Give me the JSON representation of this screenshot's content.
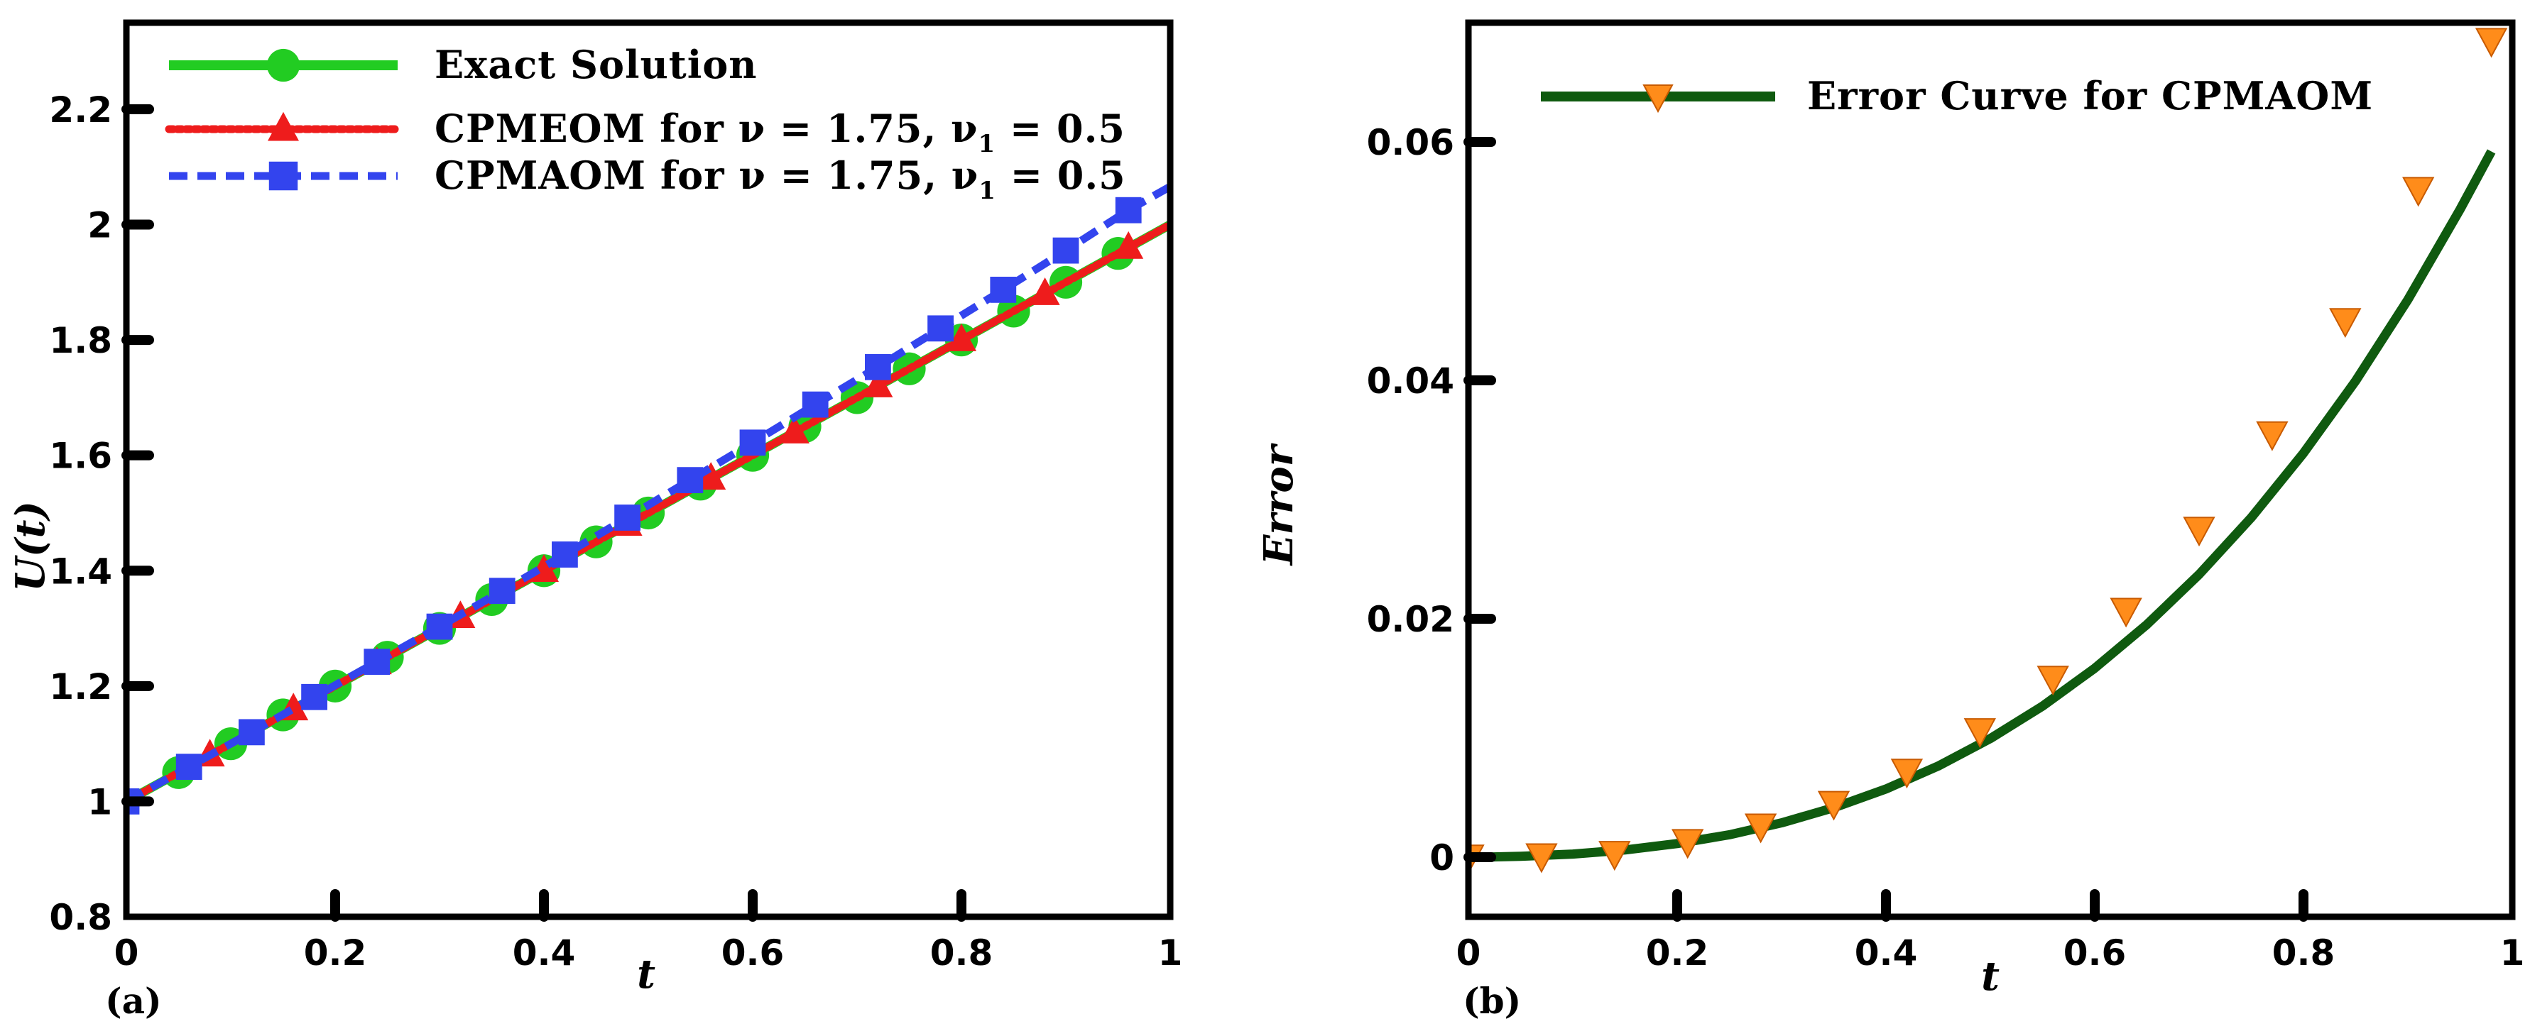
{
  "chart_data": [
    {
      "panel": "(a)",
      "type": "line",
      "xlabel": "t",
      "ylabel": "U(t)",
      "xlim": [
        0,
        1
      ],
      "ylim": [
        0.8,
        2.35
      ],
      "xticks": [
        0,
        0.2,
        0.4,
        0.6,
        0.8,
        1
      ],
      "xtick_labels": [
        "0",
        "0.2",
        "0.4",
        "0.6",
        "0.8",
        "1"
      ],
      "yticks": [
        0.8,
        1,
        1.2,
        1.4,
        1.6,
        1.8,
        2,
        2.2
      ],
      "ytick_labels": [
        "0.8",
        "1",
        "1.2",
        "1.4",
        "1.6",
        "1.8",
        "2",
        "2.2"
      ],
      "legend_position": "top-left",
      "series": [
        {
          "name": "Exact Solution",
          "legend_main": "Exact Solution",
          "legend_sub": "",
          "legend_tail": "",
          "color": "#22cc22",
          "line_style": "solid",
          "marker": "circle",
          "x": [
            0,
            0.05,
            0.1,
            0.15,
            0.2,
            0.25,
            0.3,
            0.35,
            0.4,
            0.45,
            0.5,
            0.55,
            0.6,
            0.65,
            0.7,
            0.75,
            0.8,
            0.85,
            0.9,
            0.95,
            1
          ],
          "y": [
            1,
            1.05,
            1.1,
            1.15,
            1.2,
            1.25,
            1.3,
            1.35,
            1.4,
            1.45,
            1.5,
            1.55,
            1.6,
            1.65,
            1.7,
            1.75,
            1.8,
            1.85,
            1.9,
            1.95,
            2
          ],
          "marker_x": [
            0.05,
            0.1,
            0.15,
            0.2,
            0.25,
            0.3,
            0.35,
            0.4,
            0.45,
            0.5,
            0.55,
            0.6,
            0.65,
            0.7,
            0.75,
            0.8,
            0.85,
            0.9,
            0.95
          ],
          "marker_y": [
            1.05,
            1.1,
            1.15,
            1.2,
            1.25,
            1.3,
            1.35,
            1.4,
            1.45,
            1.5,
            1.55,
            1.6,
            1.65,
            1.7,
            1.75,
            1.8,
            1.85,
            1.9,
            1.95
          ]
        },
        {
          "name": "CPMEOM for ν = 1.75, ν1 = 0.5",
          "legend_main": "CPMEOM for ν = 1.75, ν",
          "legend_sub": "1",
          "legend_tail": " = 0.5",
          "color": "#ee1c1c",
          "line_style": "dotted",
          "marker": "triangle",
          "x": [
            0,
            0.08,
            0.16,
            0.24,
            0.32,
            0.4,
            0.48,
            0.56,
            0.64,
            0.72,
            0.8,
            0.88,
            0.96,
            1
          ],
          "y": [
            1,
            1.08,
            1.16,
            1.24,
            1.32,
            1.4,
            1.48,
            1.56,
            1.64,
            1.72,
            1.8,
            1.88,
            1.96,
            2
          ],
          "marker_x": [
            0.08,
            0.16,
            0.24,
            0.32,
            0.4,
            0.48,
            0.56,
            0.64,
            0.72,
            0.8,
            0.88,
            0.96
          ],
          "marker_y": [
            1.08,
            1.16,
            1.24,
            1.32,
            1.4,
            1.48,
            1.56,
            1.64,
            1.72,
            1.8,
            1.88,
            1.96
          ]
        },
        {
          "name": "CPMAOM for ν = 1.75, ν1 = 0.5",
          "legend_main": "CPMAOM for ν = 1.75, ν",
          "legend_sub": "1",
          "legend_tail": " = 0.5",
          "color": "#3344ee",
          "line_style": "dashed",
          "marker": "square",
          "x": [
            0,
            0.06,
            0.12,
            0.18,
            0.24,
            0.3,
            0.36,
            0.42,
            0.48,
            0.54,
            0.6,
            0.66,
            0.72,
            0.78,
            0.84,
            0.9,
            0.96,
            1
          ],
          "y": [
            1,
            1.06,
            1.12,
            1.181,
            1.242,
            1.303,
            1.365,
            1.428,
            1.492,
            1.557,
            1.622,
            1.688,
            1.753,
            1.82,
            1.887,
            1.955,
            2.025,
            2.066
          ],
          "marker_x": [
            0,
            0.06,
            0.12,
            0.18,
            0.24,
            0.3,
            0.36,
            0.42,
            0.48,
            0.54,
            0.6,
            0.66,
            0.72,
            0.78,
            0.84,
            0.9,
            0.96
          ],
          "marker_y": [
            1,
            1.06,
            1.12,
            1.181,
            1.242,
            1.303,
            1.365,
            1.428,
            1.492,
            1.557,
            1.622,
            1.688,
            1.753,
            1.82,
            1.887,
            1.955,
            2.025
          ]
        }
      ]
    },
    {
      "panel": "(b)",
      "type": "line",
      "xlabel": "t",
      "ylabel": "Error",
      "xlim": [
        0,
        1
      ],
      "ylim": [
        -0.005,
        0.07
      ],
      "xticks": [
        0,
        0.2,
        0.4,
        0.6,
        0.8,
        1
      ],
      "xtick_labels": [
        "0",
        "0.2",
        "0.4",
        "0.6",
        "0.8",
        "1"
      ],
      "yticks": [
        0,
        0.02,
        0.04,
        0.06
      ],
      "ytick_labels": [
        "0",
        "0.02",
        "0.04",
        "0.06"
      ],
      "legend_position": "top-left",
      "series": [
        {
          "name": "Error Curve for CPMAOM",
          "legend_main": "Error Curve for CPMAOM",
          "legend_sub": "",
          "legend_tail": "",
          "color": "#0f5a0f",
          "marker_color": "#ff8c1a",
          "line_style": "solid",
          "marker": "triangle-down",
          "x": [
            0,
            0.02,
            0.05,
            0.1,
            0.15,
            0.2,
            0.25,
            0.3,
            0.35,
            0.4,
            0.45,
            0.5,
            0.55,
            0.6,
            0.65,
            0.7,
            0.75,
            0.8,
            0.85,
            0.9,
            0.95,
            0.98
          ],
          "y": [
            0,
            1e-05,
            7e-05,
            0.00026,
            0.00061,
            0.00114,
            0.00188,
            0.00288,
            0.00415,
            0.00572,
            0.00764,
            0.00995,
            0.01267,
            0.01585,
            0.01952,
            0.02372,
            0.02849,
            0.03389,
            0.03996,
            0.04676,
            0.05434,
            0.0592
          ],
          "marker_x": [
            0,
            0.07,
            0.14,
            0.21,
            0.28,
            0.35,
            0.42,
            0.49,
            0.56,
            0.63,
            0.7,
            0.77,
            0.84,
            0.91,
            0.98
          ],
          "marker_y": [
            0,
            0.0001,
            0.0003,
            0.0013,
            0.0026,
            0.0045,
            0.0072,
            0.0106,
            0.015,
            0.0207,
            0.0275,
            0.0355,
            0.045,
            0.056,
            0.0685
          ]
        }
      ]
    }
  ]
}
